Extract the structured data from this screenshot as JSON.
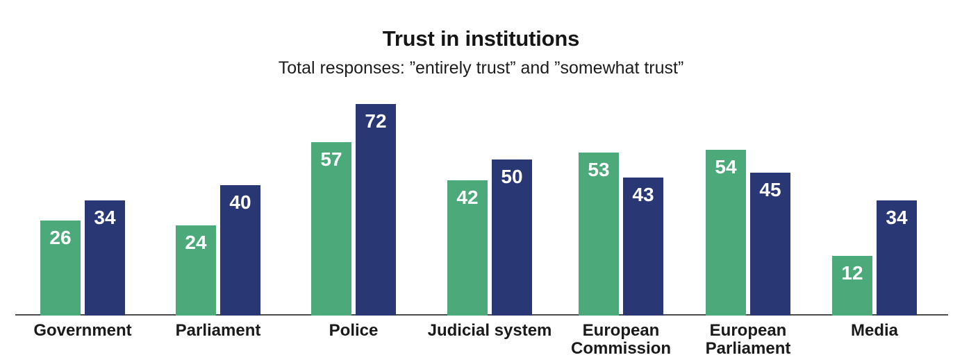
{
  "chart_data": {
    "type": "bar",
    "title": "Trust in institutions",
    "subtitle": "Total responses: ”entirely trust” and ”somewhat trust”",
    "categories": [
      "Government",
      "Parliament",
      "Police",
      "Judicial system",
      "European\nCommission",
      "European\nParliament",
      "Media"
    ],
    "series": [
      {
        "name": "green",
        "color": "#4CA97A",
        "values": [
          26,
          24,
          57,
          42,
          53,
          54,
          12
        ]
      },
      {
        "name": "navy",
        "color": "#293874",
        "values": [
          34,
          40,
          72,
          50,
          43,
          45,
          34
        ]
      }
    ],
    "value_labels": "inside-top, white, bold",
    "legend": "none",
    "grid": false,
    "xlabel": "",
    "ylabel": "",
    "axis_line_color": "#4c4c4c",
    "background_color": "#ffffff"
  }
}
